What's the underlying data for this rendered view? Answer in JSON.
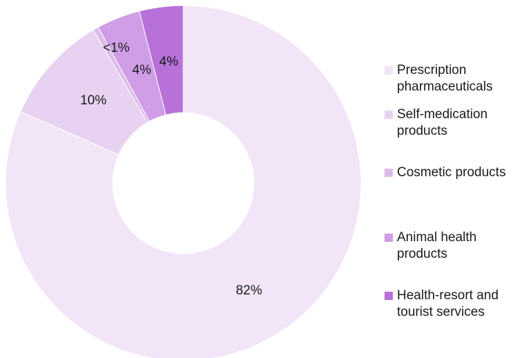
{
  "chart_data": {
    "type": "pie",
    "donut": true,
    "slices": [
      {
        "label": "Prescription pharmaceuticals",
        "value": 82,
        "display": "82%",
        "color": "#f1e5f7"
      },
      {
        "label": "Self-medication products",
        "value": 10,
        "display": "10%",
        "color": "#e8d2f1"
      },
      {
        "label": "Cosmetic products",
        "value": 0.5,
        "display": "<1%",
        "color": "#dcbcea"
      },
      {
        "label": "Animal health products",
        "value": 4,
        "display": "4%",
        "color": "#cf9ee6"
      },
      {
        "label": "Health-resort and tourist services",
        "value": 4,
        "display": "4%",
        "color": "#b871d9"
      }
    ],
    "legend_position": "right"
  },
  "legend": {
    "items": [
      {
        "label": "Prescription pharmaceuticals",
        "color": "#f1e5f7"
      },
      {
        "label": "Self-medication products",
        "color": "#e8d2f1"
      },
      {
        "label": "Cosmetic products",
        "color": "#dcbcea"
      },
      {
        "label": "Animal health products",
        "color": "#cf9ee6"
      },
      {
        "label": "Health-resort and tourist services",
        "color": "#b871d9"
      }
    ]
  }
}
